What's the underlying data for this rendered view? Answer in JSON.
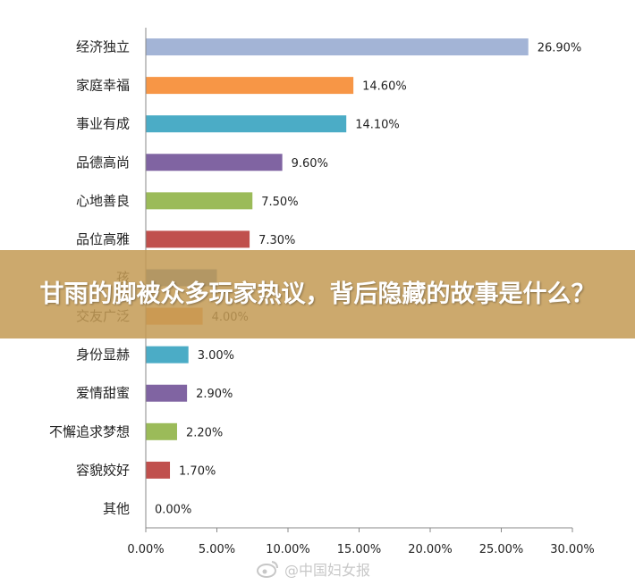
{
  "chart_data": {
    "type": "bar",
    "orientation": "horizontal",
    "categories": [
      "经济独立",
      "家庭幸福",
      "事业有成",
      "品德高尚",
      "心地善良",
      "品位高雅",
      "孩",
      "交友广泛",
      "身份显赫",
      "爱情甜蜜",
      "不懈追求梦想",
      "容貌姣好",
      "其他"
    ],
    "values": [
      26.9,
      14.6,
      14.1,
      9.6,
      7.5,
      7.3,
      5.0,
      4.0,
      3.0,
      2.9,
      2.2,
      1.7,
      0.0
    ],
    "value_labels": [
      "26.90%",
      "14.60%",
      "14.10%",
      "9.60%",
      "7.50%",
      "7.30%",
      "",
      "4.00%",
      "3.00%",
      "2.90%",
      "2.20%",
      "1.70%",
      "0.00%"
    ],
    "colors": [
      "#a3b4d6",
      "#f79646",
      "#4bacc6",
      "#8064a2",
      "#9bbb59",
      "#c0504d",
      "#4f81bd",
      "#f79646",
      "#4bacc6",
      "#8064a2",
      "#9bbb59",
      "#c0504d",
      "#4f81bd"
    ],
    "xlim": [
      0,
      30
    ],
    "xticks": [
      0,
      5,
      10,
      15,
      20,
      25,
      30
    ],
    "xtick_labels": [
      "0.00%",
      "5.00%",
      "10.00%",
      "15.00%",
      "20.00%",
      "25.00%",
      "30.00%"
    ],
    "title": "",
    "xlabel": "",
    "ylabel": "",
    "grid": false,
    "legend": "none"
  },
  "banner": {
    "title": "甘雨的脚被众多玩家热议，背后隐藏的故事是什么？"
  },
  "watermark": {
    "text": "@中国妇女报",
    "icon": "weibo-icon"
  }
}
